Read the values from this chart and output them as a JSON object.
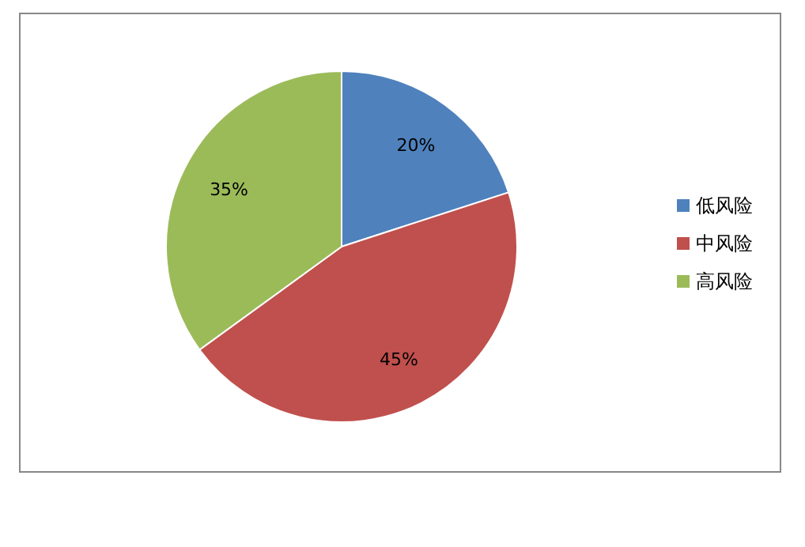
{
  "chart_data": {
    "type": "pie",
    "categories": [
      "低风险",
      "中风险",
      "高风险"
    ],
    "values": [
      20,
      45,
      35
    ],
    "colors": [
      "#4f81bd",
      "#c0504d",
      "#9bbb59"
    ],
    "value_labels": [
      "20%",
      "45%",
      "35%"
    ],
    "legend": "right"
  }
}
